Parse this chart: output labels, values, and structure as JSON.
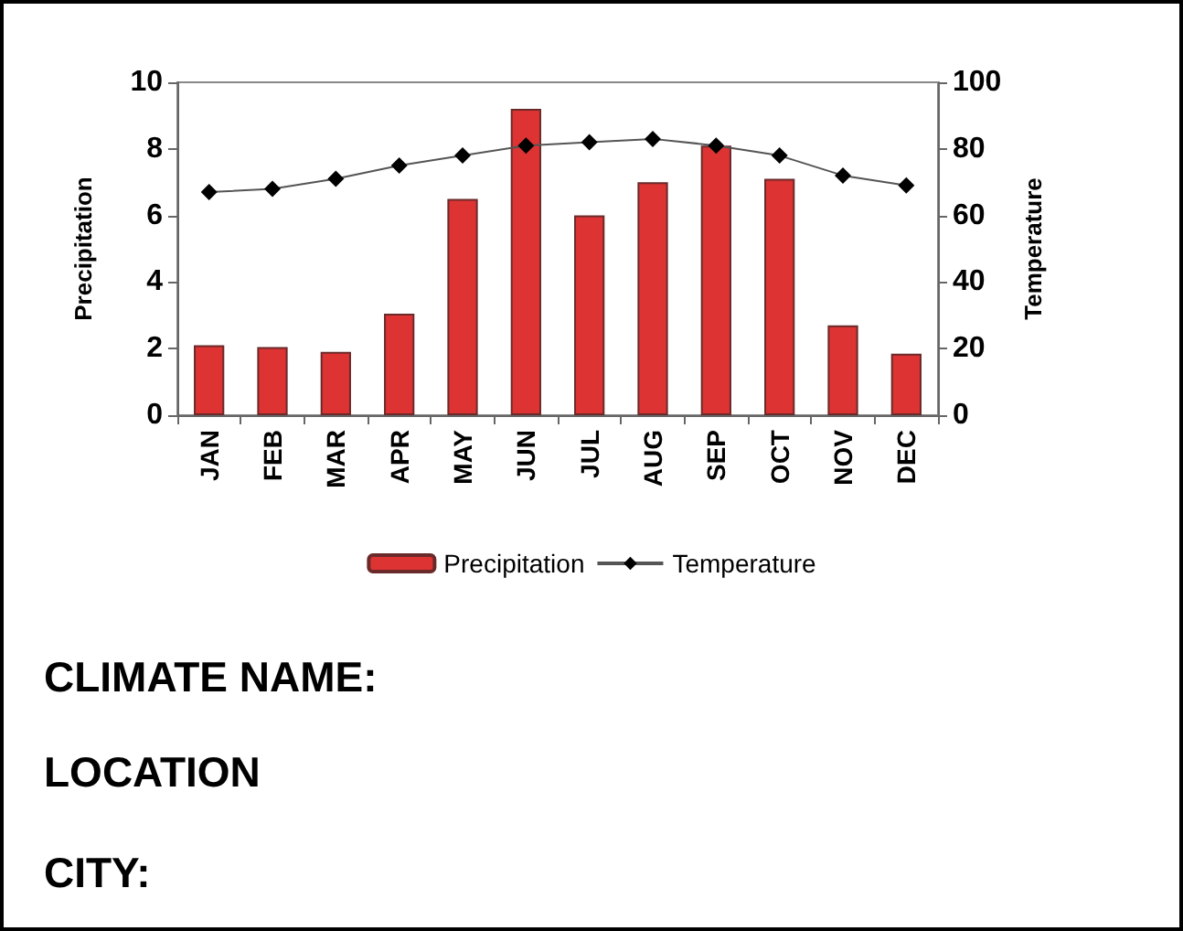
{
  "chart_data": {
    "type": "bar",
    "categories": [
      "JAN",
      "FEB",
      "MAR",
      "APR",
      "MAY",
      "JUN",
      "JUL",
      "AUG",
      "SEP",
      "OCT",
      "NOV",
      "DEC"
    ],
    "series": [
      {
        "name": "Precipitation",
        "color": "#dd3333",
        "values": [
          2.1,
          2.05,
          1.9,
          3.05,
          6.5,
          9.2,
          6.0,
          7.0,
          8.1,
          7.1,
          2.7,
          1.85
        ]
      },
      {
        "name": "Temperature",
        "type": "line",
        "axis": "y2",
        "color": "#000000",
        "marker": "diamond",
        "values": [
          67,
          68,
          71,
          75,
          78,
          81,
          82,
          83,
          81,
          78,
          72,
          69
        ]
      }
    ],
    "ylabel": "Precipitation",
    "y2label": "Temperature",
    "ylim": [
      0,
      10
    ],
    "yticks": [
      0,
      2,
      4,
      6,
      8,
      10
    ],
    "y2lim": [
      0,
      100
    ],
    "y2ticks": [
      0,
      20,
      40,
      60,
      80,
      100
    ],
    "grid": false,
    "legend": "bottom",
    "annotations": [
      "CLIMATE NAME:",
      "LOCATION",
      "CITY:"
    ]
  }
}
